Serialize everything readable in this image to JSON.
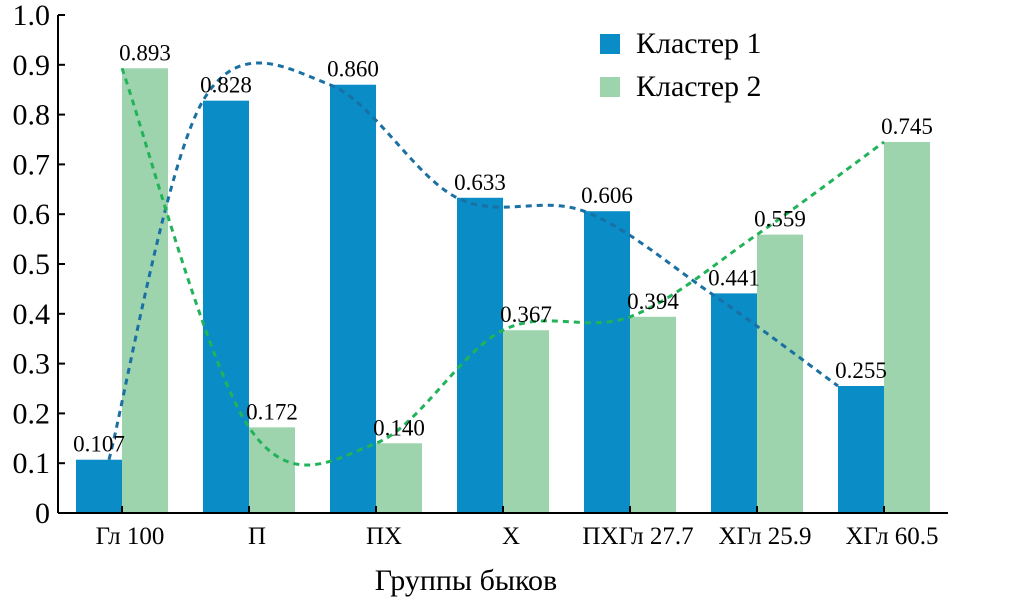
{
  "chart_data": {
    "type": "bar",
    "xlabel": "Группы быков",
    "ylabel": "",
    "ylim": [
      0,
      1.0
    ],
    "yticks": [
      "0",
      "0.1",
      "0.2",
      "0.3",
      "0.4",
      "0.5",
      "0.6",
      "0.7",
      "0.8",
      "0.9",
      "1.0"
    ],
    "categories": [
      "Гл 100",
      "П",
      "ПХ",
      "Х",
      "ПХГл 27.7",
      "ХГл 25.9",
      "ХГл 60.5"
    ],
    "series": [
      {
        "name": "Кластер 1",
        "color": "#0a8cc7",
        "trend_color": "#1a6fa3",
        "values": [
          0.107,
          0.828,
          0.86,
          0.633,
          0.606,
          0.441,
          0.255
        ],
        "labels": [
          "0.107",
          "0.828",
          "0.860",
          "0.633",
          "0.606",
          "0.441",
          "0.255"
        ]
      },
      {
        "name": "Кластер 2",
        "color": "#9dd4ad",
        "trend_color": "#22b35a",
        "values": [
          0.893,
          0.172,
          0.14,
          0.367,
          0.394,
          0.559,
          0.745
        ],
        "labels": [
          "0.893",
          "0.172",
          "0.140",
          "0.367",
          "0.394",
          "0.559",
          "0.745"
        ]
      }
    ],
    "legend_position": "top-right",
    "trendlines": "dashed polynomial per series",
    "grid": false
  }
}
